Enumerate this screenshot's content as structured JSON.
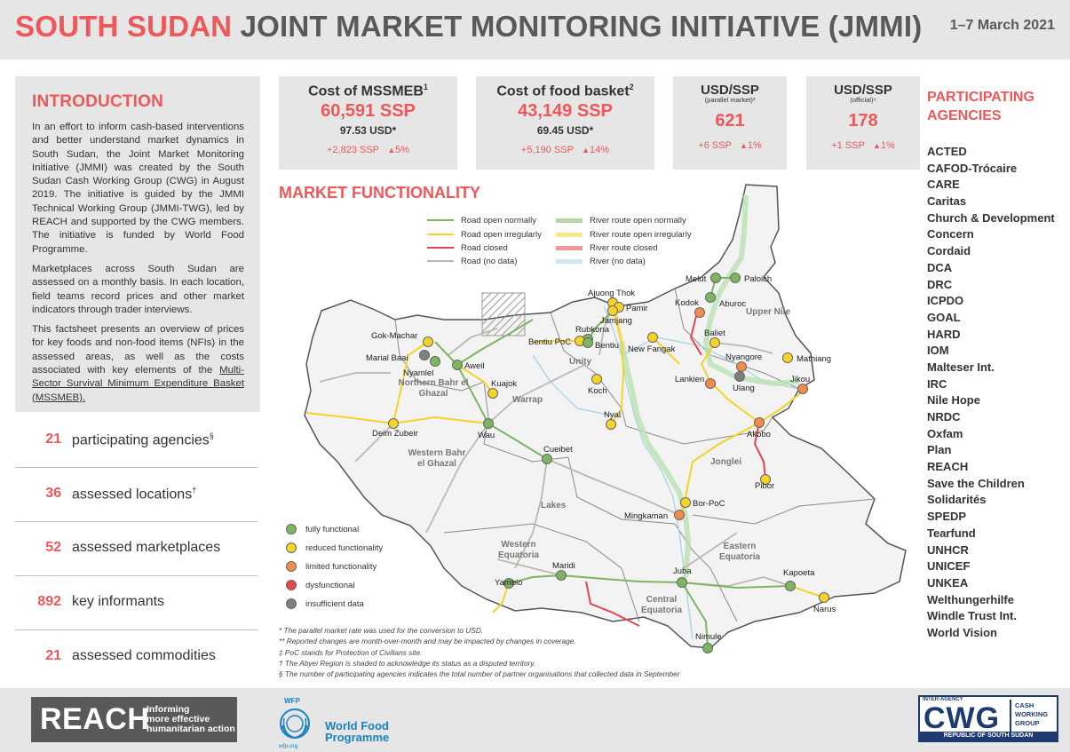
{
  "header": {
    "title_red": "SOUTH SUDAN",
    "title_rest": " JOINT MARKET MONITORING INITIATIVE (JMMI)",
    "date": "1–7 March 2021"
  },
  "intro": {
    "heading": "INTRODUCTION",
    "p1": "In an effort to inform cash-based interventions and better understand market dynamics in South Sudan, the Joint Market Monitoring Initiative (JMMI) was created by the South Sudan Cash Working Group (CWG) in August 2019. The initiative is guided by the JMMI Technical Working Group (JMMI-TWG), led by REACH and supported by the CWG members. The initiative is funded by World Food Programme.",
    "p2": "Marketplaces across South Sudan are assessed on a monthly basis. In each location, field teams record prices and other market indicators through trader interviews.",
    "p3_start": "This factsheet presents an overview of prices for key foods and non-food items (NFIs) in the assessed areas, as well as the costs associated with key elements of the ",
    "p3_link": "Multi-Sector Survival Minimum Expenditure Basket (MSSMEB)."
  },
  "stats": [
    {
      "num": "21",
      "label": "participating agencies",
      "sup": "§"
    },
    {
      "num": "36",
      "label": "assessed locations",
      "sup": "†"
    },
    {
      "num": "52",
      "label": "assessed marketplaces",
      "sup": ""
    },
    {
      "num": "892",
      "label": "key informants",
      "sup": ""
    },
    {
      "num": "21",
      "label": "assessed commodities",
      "sup": ""
    }
  ],
  "kpis": [
    {
      "title": "Cost of MSSMEB",
      "sup": "1",
      "sub": "",
      "value": "60,591 SSP",
      "usd": "97.53 USD*",
      "change": "+2,823 SSP",
      "pct": "5%"
    },
    {
      "title": "Cost of food basket",
      "sup": "2",
      "sub": "",
      "value": "43,149 SSP",
      "usd": "69.45 USD*",
      "change": "+5,190 SSP",
      "pct": "14%"
    },
    {
      "title": "USD/SSP",
      "sup": "",
      "sub": "(parallel market)³",
      "value": "621",
      "usd": "",
      "change": "+6 SSP",
      "pct": "1%"
    },
    {
      "title": "USD/SSP",
      "sup": "",
      "sub": "(official)⁴",
      "value": "178",
      "usd": "",
      "change": "+1 SSP",
      "pct": "1%"
    }
  ],
  "market": {
    "heading": "MARKET FUNCTIONALITY",
    "road_legend": [
      "Road open normally",
      "Road open irregularly",
      "Road closed",
      "Road (no data)"
    ],
    "river_legend": [
      "River route open normally",
      "River route open irregularly",
      "River route closed",
      "River (no data)"
    ],
    "colors": {
      "green": "#7db560",
      "yellow": "#f5d328",
      "orange": "#f38b4b",
      "red": "#e4464c",
      "gray": "#7f7f7f",
      "road_gray": "#bdb8ad",
      "river_blue": "#aad3e4"
    },
    "func_legend": [
      "fully functional",
      "reduced functionality",
      "limited functionality",
      "dysfunctional",
      "insufficient data"
    ],
    "regions": [
      {
        "name": "Upper Nile"
      },
      {
        "name": "Unity"
      },
      {
        "name": "Northern Bahr el Ghazal"
      },
      {
        "name": "Warrap"
      },
      {
        "name": "Western Bahr el Ghazal"
      },
      {
        "name": "Jonglei"
      },
      {
        "name": "Lakes"
      },
      {
        "name": "Western Equatoria"
      },
      {
        "name": "Eastern Equatoria"
      },
      {
        "name": "Central Equatoria"
      }
    ],
    "locations": [
      {
        "name": "Melut",
        "status": "green"
      },
      {
        "name": "Paloich",
        "status": "green"
      },
      {
        "name": "Aburoc",
        "status": "green"
      },
      {
        "name": "Kodok",
        "status": "orange"
      },
      {
        "name": "Ajuong Thok",
        "status": "yellow"
      },
      {
        "name": "Pamir",
        "status": "yellow"
      },
      {
        "name": "Jamjang",
        "status": "yellow"
      },
      {
        "name": "Rubkona",
        "status": "green"
      },
      {
        "name": "Bentiu PoC",
        "status": "yellow"
      },
      {
        "name": "Bentiu",
        "status": "green"
      },
      {
        "name": "New Fangak",
        "status": "yellow"
      },
      {
        "name": "Baliet",
        "status": "yellow"
      },
      {
        "name": "Nyangore",
        "status": "orange"
      },
      {
        "name": "Ulang",
        "status": "gray"
      },
      {
        "name": "Mathiang",
        "status": "yellow"
      },
      {
        "name": "Jikou",
        "status": "orange"
      },
      {
        "name": "Lankien",
        "status": "orange"
      },
      {
        "name": "Gok-Machar",
        "status": "yellow"
      },
      {
        "name": "Marial Baai",
        "status": "gray"
      },
      {
        "name": "Nyamlel",
        "status": "green"
      },
      {
        "name": "Aweil",
        "status": "green"
      },
      {
        "name": "Kuajok",
        "status": "yellow"
      },
      {
        "name": "Koch",
        "status": "yellow"
      },
      {
        "name": "Nyal",
        "status": "yellow"
      },
      {
        "name": "Deim Zubeir",
        "status": "yellow"
      },
      {
        "name": "Wau",
        "status": "green"
      },
      {
        "name": "Akobo",
        "status": "orange"
      },
      {
        "name": "Cueibet",
        "status": "green"
      },
      {
        "name": "Pibor",
        "status": "yellow"
      },
      {
        "name": "Bor-PoC",
        "status": "yellow"
      },
      {
        "name": "Mingkaman",
        "status": "orange"
      },
      {
        "name": "Maridi",
        "status": "green"
      },
      {
        "name": "Yambio",
        "status": "green"
      },
      {
        "name": "Juba",
        "status": "green"
      },
      {
        "name": "Kapoeta",
        "status": "green"
      },
      {
        "name": "Narus",
        "status": "yellow"
      },
      {
        "name": "Nimule",
        "status": "green"
      }
    ]
  },
  "notes": [
    "* The parallel market rate was used for the conversion to USD.",
    "** Reported changes are month-over-month and may be impacted by changes in coverage.",
    "‡ PoC stands for Protection of Civilians site.",
    "† The Abyei Region is shaded to acknowledge its status as a disputed territory.",
    "§ The number of participating agencies indicates the total number of partner organisations that collected data in September"
  ],
  "agencies": {
    "heading_line1": "PARTICIPATING",
    "heading_line2": "AGENCIES",
    "list": [
      "ACTED",
      "CAFOD-Trócaire",
      "CARE",
      "Caritas",
      "Church & Development",
      "Concern",
      "Cordaid",
      "DCA",
      "DRC",
      "ICPDO",
      "GOAL",
      "HARD",
      "IOM",
      "Malteser Int.",
      "IRC",
      "Nile Hope",
      "NRDC",
      "Oxfam",
      "Plan",
      "REACH",
      "Save the Children",
      "Solidarités",
      "SPEDP",
      "Tearfund",
      "UNHCR",
      "UNICEF",
      "UNKEA",
      "Welthungerhilfe",
      "Windle Trust Int.",
      "World Vision"
    ]
  },
  "footer": {
    "reach": "REACH",
    "reach_tag": [
      "Informing",
      "more effective",
      "humanitarian action"
    ],
    "wfp_abbr": "WFP",
    "wfp_name_1": "World Food",
    "wfp_name_2": "Programme",
    "wfp_url": "wfp.org",
    "cwg_top": "INTER-AGENCY",
    "cwg": "CWG",
    "cwg_side": [
      "CASH",
      "WORKING",
      "GROUP"
    ],
    "cwg_bottom": "REPUBLIC OF SOUTH SUDAN"
  }
}
